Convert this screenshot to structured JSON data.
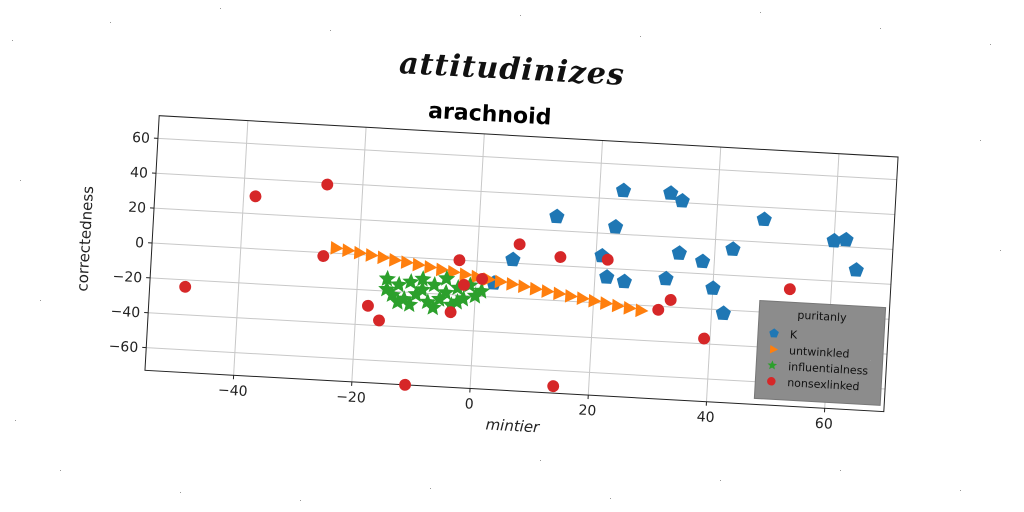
{
  "figure": {
    "suptitle": "attitudinizes"
  },
  "chart_data": {
    "type": "scatter",
    "title": "arachnoid",
    "xlabel": "mintier",
    "ylabel": "correctedness",
    "xlim": [
      -55,
      70
    ],
    "ylim": [
      -73,
      73
    ],
    "xticks": [
      -40,
      -20,
      0,
      20,
      40,
      60
    ],
    "yticks": [
      -60,
      -40,
      -20,
      0,
      20,
      40,
      60
    ],
    "grid": true,
    "legend": {
      "title": "puritanly",
      "position": "lower-right"
    },
    "series": [
      {
        "name": "K",
        "marker": "pentagon",
        "color": "#1f77b4",
        "points": [
          [
            13,
            28
          ],
          [
            24,
            45
          ],
          [
            23,
            24
          ],
          [
            21,
            7
          ],
          [
            22,
            -5
          ],
          [
            25,
            -7
          ],
          [
            32,
            45
          ],
          [
            34,
            41
          ],
          [
            32,
            -4
          ],
          [
            34,
            11
          ],
          [
            38,
            7
          ],
          [
            40,
            -8
          ],
          [
            42,
            -22
          ],
          [
            43,
            15
          ],
          [
            48,
            33
          ],
          [
            60,
            23
          ],
          [
            62,
            24
          ],
          [
            64,
            7
          ],
          [
            63,
            -23
          ],
          [
            6,
            2
          ],
          [
            3,
            -12
          ]
        ]
      },
      {
        "name": "untwinkled",
        "marker": "triangle-right",
        "color": "#ff7f0e",
        "points": [
          [
            -24,
            3
          ],
          [
            -22,
            2
          ],
          [
            -20,
            1
          ],
          [
            -18,
            0
          ],
          [
            -16,
            -1
          ],
          [
            -14,
            -2
          ],
          [
            -12,
            -3
          ],
          [
            -10,
            -4
          ],
          [
            -8,
            -5
          ],
          [
            -6,
            -6
          ],
          [
            -4,
            -7
          ],
          [
            -2,
            -8
          ],
          [
            0,
            -9
          ],
          [
            2,
            -10
          ],
          [
            4,
            -11
          ],
          [
            6,
            -12
          ],
          [
            8,
            -13
          ],
          [
            10,
            -14
          ],
          [
            12,
            -15
          ],
          [
            14,
            -16
          ],
          [
            16,
            -17
          ],
          [
            18,
            -18
          ],
          [
            20,
            -19
          ],
          [
            22,
            -20
          ],
          [
            24,
            -21
          ],
          [
            26,
            -22
          ],
          [
            28,
            -23
          ]
        ]
      },
      {
        "name": "influentialness",
        "marker": "star",
        "color": "#2ca02c",
        "points": [
          [
            -15,
            -13
          ],
          [
            -13,
            -16
          ],
          [
            -11,
            -14
          ],
          [
            -9,
            -18
          ],
          [
            -7,
            -15
          ],
          [
            -5,
            -19
          ],
          [
            -3,
            -16
          ],
          [
            -1,
            -14
          ],
          [
            1,
            -17
          ],
          [
            -14,
            -22
          ],
          [
            -12,
            -24
          ],
          [
            -10,
            -21
          ],
          [
            -8,
            -25
          ],
          [
            -6,
            -23
          ],
          [
            -4,
            -26
          ],
          [
            -2,
            -22
          ],
          [
            -15,
            -19
          ],
          [
            -11,
            -27
          ],
          [
            -9,
            -12
          ],
          [
            -5,
            -11
          ],
          [
            -3,
            -24
          ],
          [
            -13,
            -26
          ],
          [
            -7,
            -28
          ],
          [
            0,
            -20
          ]
        ]
      },
      {
        "name": "nonsexlinked",
        "marker": "circle",
        "color": "#d62728",
        "points": [
          [
            -49,
            -24
          ],
          [
            -38,
            30
          ],
          [
            -26,
            39
          ],
          [
            -26,
            -2
          ],
          [
            -18,
            -29
          ],
          [
            -16,
            -37
          ],
          [
            -11,
            -73
          ],
          [
            -4,
            -30
          ],
          [
            -3,
            0
          ],
          [
            -2,
            -14
          ],
          [
            1,
            -10
          ],
          [
            7,
            11
          ],
          [
            14,
            5
          ],
          [
            14,
            -69
          ],
          [
            22,
            5
          ],
          [
            31,
            -22
          ],
          [
            33,
            -16
          ],
          [
            39,
            -37
          ],
          [
            53,
            -6
          ]
        ]
      }
    ]
  }
}
